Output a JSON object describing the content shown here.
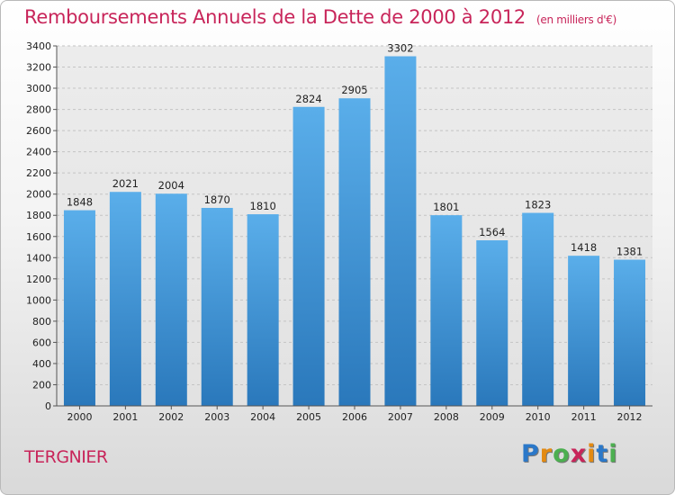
{
  "chart_data": {
    "type": "bar",
    "title": "Remboursements Annuels de la Dette de 2000 à 2012",
    "unit_note": "(en milliers d'€)",
    "categories": [
      "2000",
      "2001",
      "2002",
      "2003",
      "2004",
      "2005",
      "2006",
      "2007",
      "2008",
      "2009",
      "2010",
      "2011",
      "2012"
    ],
    "values": [
      1848,
      2021,
      2004,
      1870,
      1810,
      2824,
      2905,
      3302,
      1801,
      1564,
      1823,
      1418,
      1381
    ],
    "ylim": [
      0,
      3400
    ],
    "yticks": [
      0,
      200,
      400,
      600,
      800,
      1000,
      1200,
      1400,
      1600,
      1800,
      2000,
      2200,
      2400,
      2600,
      2800,
      3000,
      3200,
      3400
    ],
    "grid": true,
    "bar_color": "#4a9fe0"
  },
  "footer": {
    "city": "TERGNIER",
    "logo_letters": [
      "P",
      "r",
      "o",
      "x",
      "i",
      "t",
      "i"
    ],
    "logo_colors": [
      "#2b78c9",
      "#e38a12",
      "#4caf50",
      "#c8255a",
      "#e38a12",
      "#2b78c9",
      "#4caf50"
    ]
  }
}
